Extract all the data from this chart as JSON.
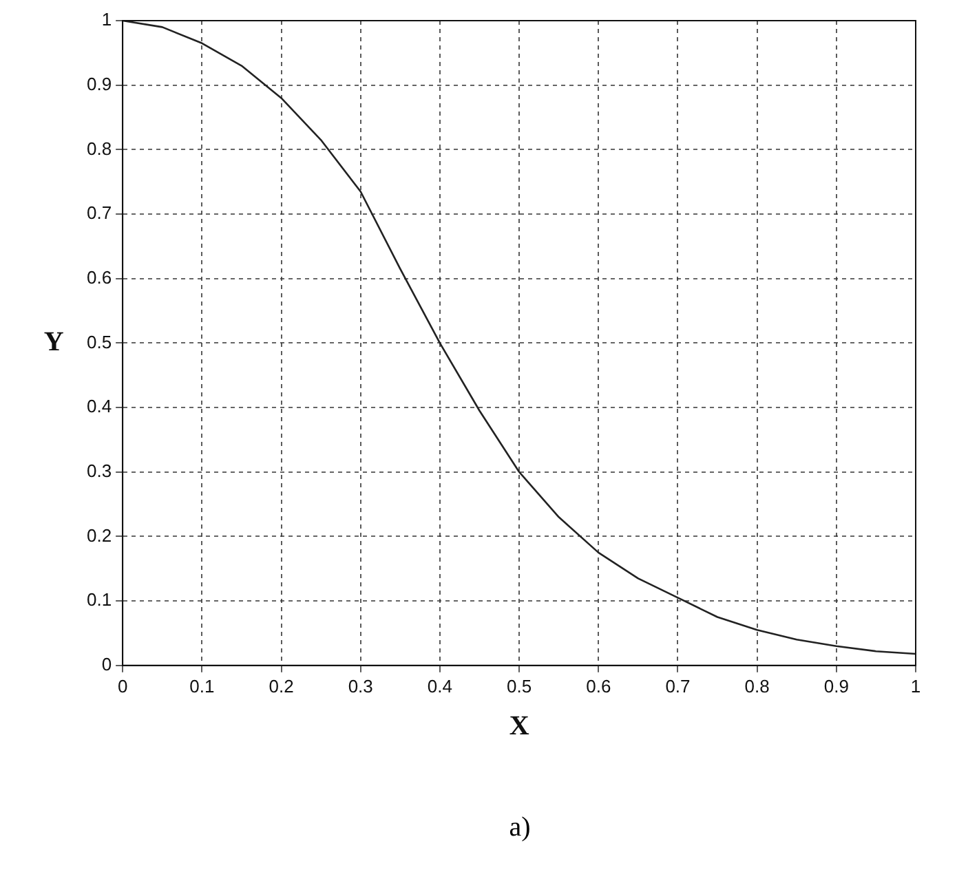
{
  "chart_data": {
    "type": "line",
    "xlabel": "X",
    "ylabel": "Y",
    "annotations": [
      "a)"
    ],
    "x": [
      0,
      0.05,
      0.1,
      0.15,
      0.2,
      0.25,
      0.3,
      0.35,
      0.4,
      0.45,
      0.5,
      0.55,
      0.6,
      0.65,
      0.7,
      0.75,
      0.8,
      0.85,
      0.9,
      0.95,
      1
    ],
    "series": [
      {
        "color": "#222222",
        "values": [
          1,
          0.99,
          0.965,
          0.93,
          0.88,
          0.815,
          0.735,
          0.615,
          0.5,
          0.395,
          0.3,
          0.23,
          0.175,
          0.135,
          0.105,
          0.075,
          0.055,
          0.04,
          0.03,
          0.022,
          0.018
        ]
      }
    ],
    "xlim": [
      0,
      1
    ],
    "ylim": [
      0,
      1
    ],
    "xticks": [
      0,
      0.1,
      0.2,
      0.3,
      0.4,
      0.5,
      0.6,
      0.7,
      0.8,
      0.9,
      1
    ],
    "yticks": [
      0,
      0.1,
      0.2,
      0.3,
      0.4,
      0.5,
      0.6,
      0.7,
      0.8,
      0.9,
      1
    ],
    "grid": true,
    "legend": false,
    "marker": "none",
    "line_style": "solid"
  }
}
